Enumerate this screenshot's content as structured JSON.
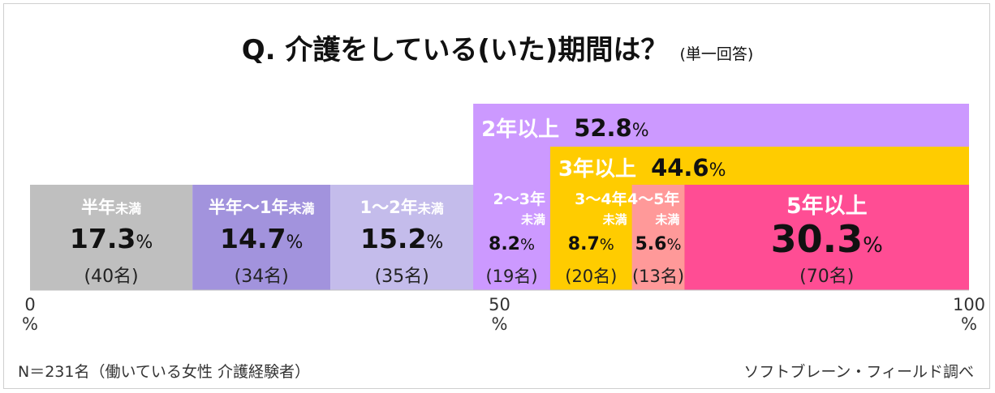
{
  "title": "Q.  介護をしている(いた)期間は？",
  "subtitle": "(単一回答)",
  "footer_left": "N＝231名（働いている女性  介護経験者）",
  "footer_right": "ソフトブレーン・フィールド調べ",
  "chart_data": {
    "type": "bar",
    "orientation": "horizontal-stacked-100",
    "xlim": [
      0,
      100
    ],
    "ticks": [
      {
        "value": 0,
        "line1": "0",
        "line2": "%"
      },
      {
        "value": 50,
        "line1": "50",
        "line2": "%"
      },
      {
        "value": 100,
        "line1": "100",
        "line2": "%"
      }
    ],
    "segments": [
      {
        "label": "半年",
        "label_suffix": "未満",
        "value": 17.3,
        "value_main": "17.3",
        "pct": "%",
        "count": "(40名)",
        "color": "#bfbfbf",
        "text_color": "#111111",
        "label_color": "#ffffff",
        "start": 0
      },
      {
        "label": "半年〜1年",
        "label_suffix": "未満",
        "value": 14.7,
        "value_main": "14.7",
        "pct": "%",
        "count": "(34名)",
        "color": "#a293dd",
        "text_color": "#111111",
        "label_color": "#ffffff",
        "start": 17.3
      },
      {
        "label": "1〜2年",
        "label_suffix": "未満",
        "value": 15.2,
        "value_main": "15.2",
        "pct": "%",
        "count": "(35名)",
        "color": "#c4bceb",
        "text_color": "#111111",
        "label_color": "#ffffff",
        "start": 32.0
      },
      {
        "label": "2〜3年",
        "label_suffix": "未満",
        "value": 8.2,
        "value_main": "8.2",
        "pct": "%",
        "count": "(19名)",
        "color": "#cc99ff",
        "text_color": "#111111",
        "label_color": "#ffffff",
        "start": 47.2
      },
      {
        "label": "3〜4年",
        "label_suffix": "未満",
        "value": 8.7,
        "value_main": "8.7",
        "pct": "%",
        "count": "(20名)",
        "color": "#ffcc00",
        "text_color": "#111111",
        "label_color": "#ffffff",
        "start": 55.4
      },
      {
        "label": "4〜5年",
        "label_suffix": "未満",
        "value": 5.6,
        "value_main": "5.6",
        "pct": "%",
        "count": "(13名)",
        "color": "#ff9999",
        "text_color": "#111111",
        "label_color": "#ffffff",
        "start": 64.1
      },
      {
        "label": "5年以上",
        "label_suffix": "",
        "value": 30.3,
        "value_main": "30.3",
        "pct": "%",
        "count": "(70名)",
        "color": "#ff4d94",
        "text_color": "#111111",
        "label_color": "#ffffff",
        "start": 69.7
      }
    ],
    "summary_bands": [
      {
        "label": "2年以上",
        "value_main": "52.8",
        "pct": "%",
        "value": 52.8,
        "start": 47.2,
        "color": "#cc99ff"
      },
      {
        "label": "3年以上",
        "value_main": "44.6",
        "pct": "%",
        "value": 44.6,
        "start": 55.4,
        "color": "#ffcc00"
      }
    ]
  }
}
